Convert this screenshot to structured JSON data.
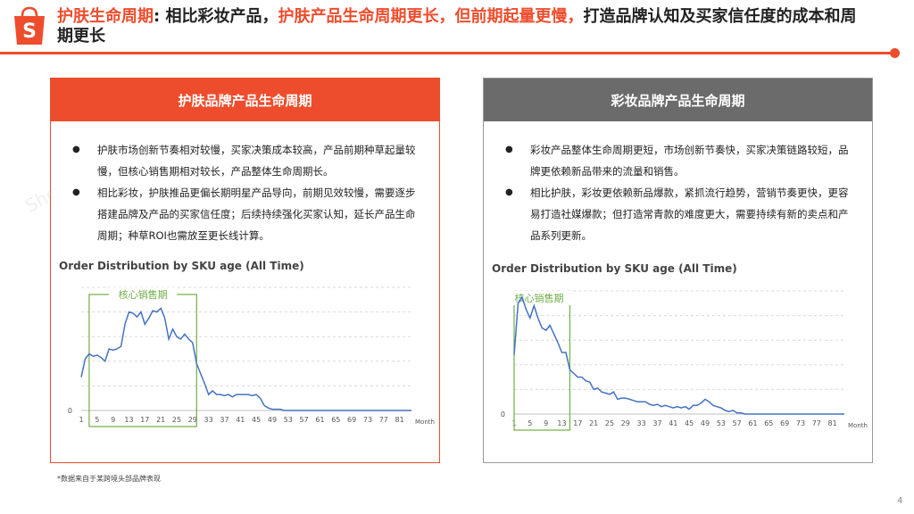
{
  "header": {
    "title_highlight_1": "护肤生命周期",
    "title_plain_1": ": 相比彩妆产品，",
    "title_highlight_2": "护肤产品生命周期更长，但前期起量更慢，",
    "title_plain_2": "打造品牌认知及买家信任度的成本和周期更长",
    "brand_color": "#ee4d2d",
    "logo_icon": "shopee-bag-icon",
    "logo_letter": "S"
  },
  "watermark": "Shopee卖家平台",
  "left_panel": {
    "heading": "护肤品牌产品生命周期",
    "header_color": "#ee4d2d",
    "bullets": [
      "护肤市场创新节奏相对较慢，买家决策成本较高，产品前期种草起量较慢，但核心销售期相对较长，产品整体生命周期长。",
      "相比彩妆，护肤推品更偏长期明星产品导向，前期见效较慢，需要逐步搭建品牌及产品的买家信任度；后续持续强化买家认知，延长产品生命周期；种草ROI也需放至更长线计算。"
    ],
    "chart_title": "Order Distribution by SKU age (All Time)",
    "core_label": "核心销售期"
  },
  "right_panel": {
    "heading": "彩妆品牌产品生命周期",
    "header_color": "#6b6b6b",
    "bullets": [
      "彩妆产品整体生命周期更短，市场创新节奏快，买家决策链路较短，品牌更依赖新品带来的流量和销售。",
      "相比护肤，彩妆更依赖新品爆款，紧抓流行趋势，营销节奏更快，更容易打造社媒爆款；但打造常青款的难度更大，需要持续有新的卖点和产品系列更新。"
    ],
    "chart_title": "Order Distribution by SKU age (All Time)",
    "core_label": "核心销售期"
  },
  "footnote": "*数据来自于某跨境头部品牌表现",
  "page_number": "4",
  "chart_data": [
    {
      "type": "line",
      "title": "Order Distribution by SKU age (All Time)",
      "xlabel": "Month",
      "ylabel": "",
      "x_ticks": [
        1,
        5,
        9,
        13,
        17,
        21,
        25,
        29,
        33,
        37,
        41,
        45,
        49,
        53,
        57,
        61,
        65,
        69,
        73,
        77,
        81
      ],
      "y_ticks": [
        0
      ],
      "xlim": [
        1,
        84
      ],
      "ylim": [
        0,
        100
      ],
      "line_color": "#4472c4",
      "highlight": {
        "label": "核心销售期",
        "x_start": 3,
        "x_end": 30,
        "color": "#70ad47"
      },
      "series": [
        {
          "x": [
            1,
            2,
            3,
            4,
            5,
            6,
            7,
            8,
            9,
            10,
            11,
            12,
            13,
            14,
            15,
            16,
            17,
            18,
            19,
            20,
            21,
            22,
            23,
            24,
            25,
            26,
            27,
            28,
            29,
            30,
            31,
            32,
            33,
            34,
            35,
            36,
            37,
            38,
            39,
            40,
            41,
            42,
            43,
            44,
            45,
            46,
            47,
            48,
            49,
            50,
            51,
            52,
            53,
            54,
            55,
            56,
            57,
            58,
            59,
            60,
            61,
            62,
            63,
            64,
            65,
            66,
            67,
            68,
            69,
            70,
            71,
            72,
            73,
            74,
            75,
            76,
            77,
            78,
            79,
            80,
            81,
            82,
            83,
            84
          ],
          "values": [
            27,
            42,
            46,
            44,
            45,
            43,
            40,
            50,
            49,
            50,
            52,
            70,
            80,
            79,
            76,
            80,
            70,
            75,
            81,
            80,
            83,
            75,
            58,
            66,
            60,
            58,
            62,
            58,
            55,
            38,
            30,
            22,
            13,
            16,
            13,
            13,
            12,
            13,
            11,
            13,
            13,
            13,
            13,
            12,
            13,
            10,
            4,
            2,
            1,
            1,
            1,
            0,
            0,
            0,
            0,
            0,
            0,
            0,
            0,
            0,
            0,
            0,
            0,
            0,
            0,
            0,
            0,
            0,
            0,
            0,
            0,
            0,
            0,
            0,
            0,
            0,
            0,
            0,
            0,
            0,
            0,
            0,
            0,
            0
          ]
        }
      ]
    },
    {
      "type": "line",
      "title": "Order Distribution by SKU age (All Time)",
      "xlabel": "Month",
      "ylabel": "",
      "x_ticks": [
        1,
        5,
        9,
        13,
        17,
        21,
        25,
        29,
        33,
        37,
        41,
        45,
        49,
        53,
        57,
        61,
        65,
        69,
        73,
        77,
        81
      ],
      "y_ticks": [
        0
      ],
      "xlim": [
        1,
        84
      ],
      "ylim": [
        0,
        100
      ],
      "line_color": "#4472c4",
      "highlight": {
        "label": "核心销售期",
        "x_start": 1,
        "x_end": 15,
        "color": "#70ad47"
      },
      "series": [
        {
          "x": [
            1,
            2,
            3,
            4,
            5,
            6,
            7,
            8,
            9,
            10,
            11,
            12,
            13,
            14,
            15,
            16,
            17,
            18,
            19,
            20,
            21,
            22,
            23,
            24,
            25,
            26,
            27,
            28,
            29,
            30,
            31,
            32,
            33,
            34,
            35,
            36,
            37,
            38,
            39,
            40,
            41,
            42,
            43,
            44,
            45,
            46,
            47,
            48,
            49,
            50,
            51,
            52,
            53,
            54,
            55,
            56,
            57,
            58,
            59,
            60,
            61,
            62,
            63,
            64,
            65,
            66,
            67,
            68,
            69,
            70,
            71,
            72,
            73,
            74,
            75,
            76,
            77,
            78,
            79,
            80,
            81,
            82,
            83,
            84
          ],
          "values": [
            48,
            90,
            95,
            85,
            78,
            88,
            78,
            70,
            68,
            72,
            65,
            58,
            50,
            50,
            36,
            33,
            30,
            30,
            27,
            26,
            20,
            21,
            18,
            17,
            16,
            18,
            12,
            13,
            13,
            12,
            11,
            10,
            10,
            10,
            8,
            7,
            8,
            6,
            7,
            6,
            5,
            6,
            5,
            6,
            4,
            7,
            7,
            9,
            12,
            10,
            7,
            6,
            5,
            3,
            2,
            3,
            1,
            1,
            0,
            0,
            0,
            0,
            0,
            0,
            0,
            0,
            0,
            0,
            0,
            0,
            0,
            0,
            0,
            0,
            0,
            0,
            0,
            0,
            0,
            0,
            0,
            0,
            0,
            0
          ]
        }
      ]
    }
  ]
}
